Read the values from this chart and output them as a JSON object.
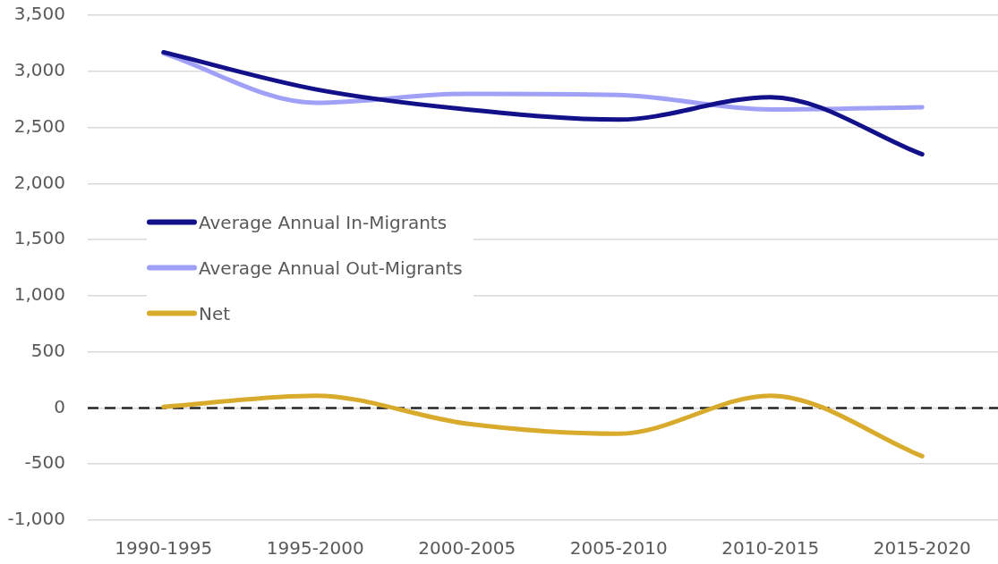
{
  "chart_data": {
    "type": "line",
    "categories": [
      "1990-1995",
      "1995-2000",
      "2000-2005",
      "2005-2010",
      "2010-2015",
      "2015-2020"
    ],
    "series": [
      {
        "name": "Average Annual In-Migrants",
        "color": "#13118a",
        "values": [
          3170,
          2840,
          2660,
          2570,
          2770,
          2260
        ]
      },
      {
        "name": "Average Annual Out-Migrants",
        "color": "#a0a0f7",
        "values": [
          3160,
          2720,
          2800,
          2790,
          2660,
          2680
        ]
      },
      {
        "name": "Net",
        "color": "#d9ab2c",
        "values": [
          10,
          110,
          -140,
          -230,
          110,
          -430
        ]
      }
    ],
    "ylim": [
      -1000,
      3500
    ],
    "yticks": [
      {
        "value": -1000,
        "label": "-1,000"
      },
      -500,
      0,
      500,
      {
        "value": 1000,
        "label": "1,000"
      },
      {
        "value": 1500,
        "label": "1,500"
      },
      {
        "value": 2000,
        "label": "2,000"
      },
      {
        "value": 2500,
        "label": "2,500"
      },
      {
        "value": 3000,
        "label": "3,000"
      },
      {
        "value": 3500,
        "label": "3,500"
      }
    ],
    "ref_lines": [
      {
        "axis": "y",
        "value": 0,
        "color": "#262626",
        "line_style": "dashed"
      }
    ],
    "grid": "y",
    "legend": "left",
    "marker": "none",
    "line_style": "solid"
  }
}
